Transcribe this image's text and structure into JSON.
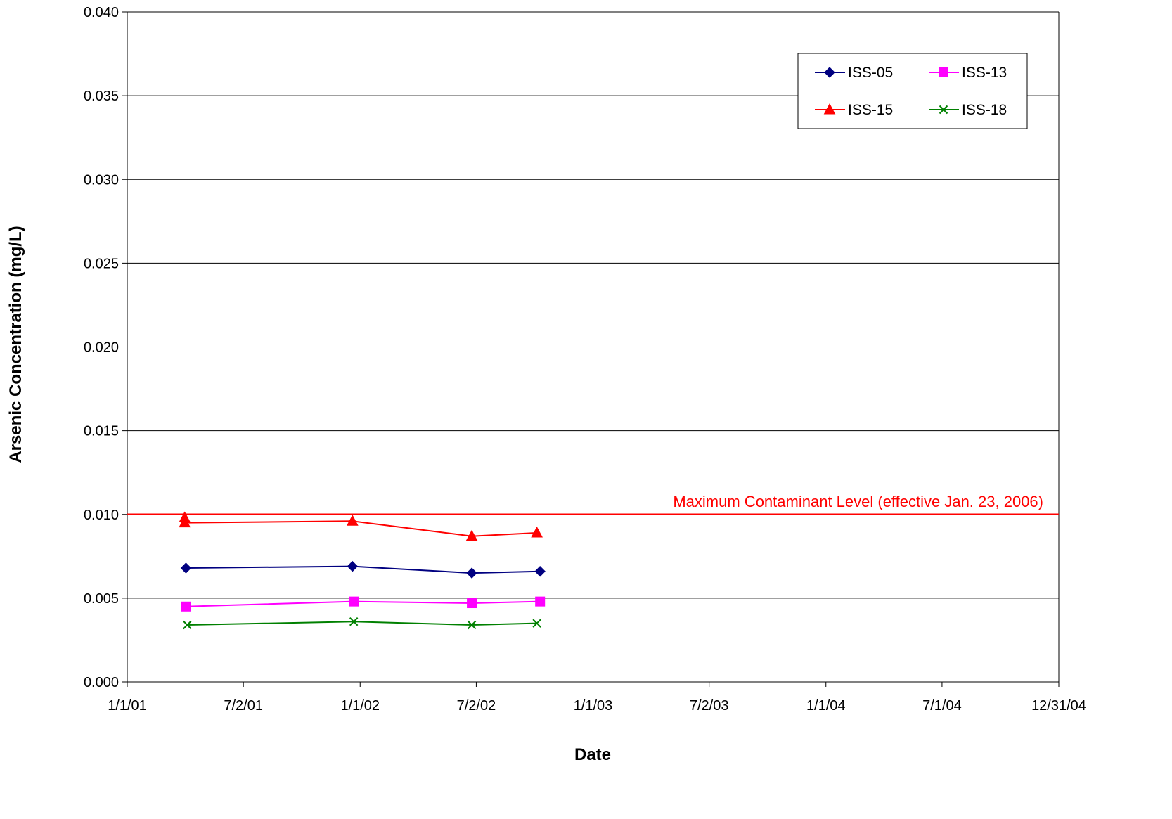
{
  "chart_data": {
    "type": "line",
    "title": "",
    "xlabel": "Date",
    "ylabel": "Arsenic Concentration (mg/L)",
    "x_type": "date",
    "xlim": [
      "2001-01-01",
      "2004-12-31"
    ],
    "x_ticks": [
      {
        "date": "2001-01-01",
        "label": "1/1/01"
      },
      {
        "date": "2001-07-02",
        "label": "7/2/01"
      },
      {
        "date": "2002-01-01",
        "label": "1/1/02"
      },
      {
        "date": "2002-07-02",
        "label": "7/2/02"
      },
      {
        "date": "2003-01-01",
        "label": "1/1/03"
      },
      {
        "date": "2003-07-02",
        "label": "7/2/03"
      },
      {
        "date": "2004-01-01",
        "label": "1/1/04"
      },
      {
        "date": "2004-07-01",
        "label": "7/1/04"
      },
      {
        "date": "2004-12-31",
        "label": "12/31/04"
      }
    ],
    "ylim": [
      0,
      0.04
    ],
    "y_ticks": [
      "0.000",
      "0.005",
      "0.010",
      "0.015",
      "0.020",
      "0.025",
      "0.030",
      "0.035",
      "0.040"
    ],
    "grid": "horizontal",
    "legend_position": "top-right",
    "series": [
      {
        "name": "ISS-05",
        "color": "#000080",
        "marker": "diamond",
        "points": [
          {
            "date": "2001-04-03",
            "value": 0.0068
          },
          {
            "date": "2001-12-20",
            "value": 0.0069
          },
          {
            "date": "2002-06-25",
            "value": 0.0065
          },
          {
            "date": "2002-10-10",
            "value": 0.0066
          }
        ]
      },
      {
        "name": "ISS-13",
        "color": "#FF00FF",
        "marker": "square",
        "points": [
          {
            "date": "2001-04-03",
            "value": 0.0045
          },
          {
            "date": "2001-12-22",
            "value": 0.0048
          },
          {
            "date": "2002-06-25",
            "value": 0.0047
          },
          {
            "date": "2002-10-10",
            "value": 0.0048
          }
        ]
      },
      {
        "name": "ISS-15",
        "color": "#FF0000",
        "marker": "triangle",
        "points": [
          {
            "date": "2001-04-01",
            "value": 0.0098
          },
          {
            "date": "2001-04-01",
            "value": 0.0095
          },
          {
            "date": "2001-12-20",
            "value": 0.0096
          },
          {
            "date": "2002-06-25",
            "value": 0.0087
          },
          {
            "date": "2002-10-05",
            "value": 0.0089
          }
        ]
      },
      {
        "name": "ISS-18",
        "color": "#008000",
        "marker": "x",
        "points": [
          {
            "date": "2001-04-05",
            "value": 0.0034
          },
          {
            "date": "2001-12-22",
            "value": 0.0036
          },
          {
            "date": "2002-06-25",
            "value": 0.0034
          },
          {
            "date": "2002-10-05",
            "value": 0.0035
          }
        ]
      }
    ],
    "reference_lines": [
      {
        "value": 0.01,
        "label": "Maximum Contaminant Level (effective Jan. 23, 2006)",
        "color": "#FF0000"
      }
    ]
  }
}
